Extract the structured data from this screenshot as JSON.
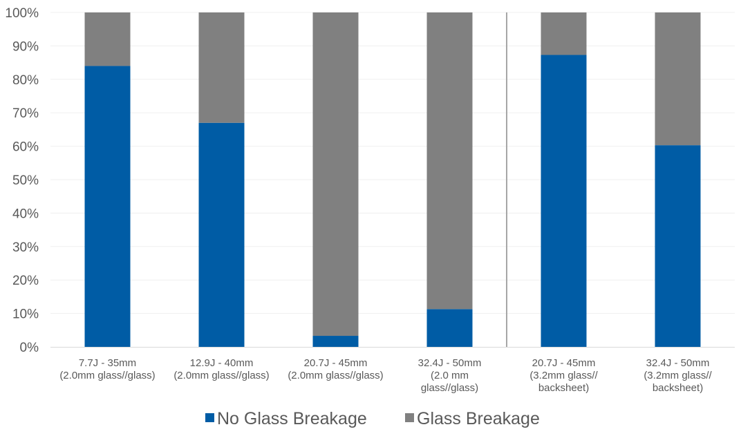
{
  "chart_data": {
    "type": "bar",
    "stacked": true,
    "percent_stacked": true,
    "categories": [
      [
        "7.7J - 35mm",
        "(2.0mm glass//glass)"
      ],
      [
        "12.9J - 40mm",
        "(2.0mm glass//glass)"
      ],
      [
        "20.7J - 45mm",
        "(2.0mm glass//glass)"
      ],
      [
        "32.4J - 50mm",
        "(2.0 mm",
        "glass//glass)"
      ],
      [
        "20.7J - 45mm",
        "(3.2mm glass//",
        "backsheet)"
      ],
      [
        "32.4J - 50mm",
        "(3.2mm glass//",
        "backsheet)"
      ]
    ],
    "series": [
      {
        "name": "No Glass Breakage",
        "color": "#005ca5",
        "values": [
          84,
          67,
          3.3,
          11.3,
          87.3,
          60.3
        ]
      },
      {
        "name": "Glass Breakage",
        "color": "#808080",
        "values": [
          16,
          33,
          96.7,
          88.7,
          12.7,
          39.7
        ]
      }
    ],
    "yticks": [
      "0%",
      "10%",
      "20%",
      "30%",
      "40%",
      "50%",
      "60%",
      "70%",
      "80%",
      "90%",
      "100%"
    ],
    "ylim": [
      0,
      100
    ],
    "group_divider_after_category": 3,
    "grid": true,
    "legend": "bottom"
  }
}
